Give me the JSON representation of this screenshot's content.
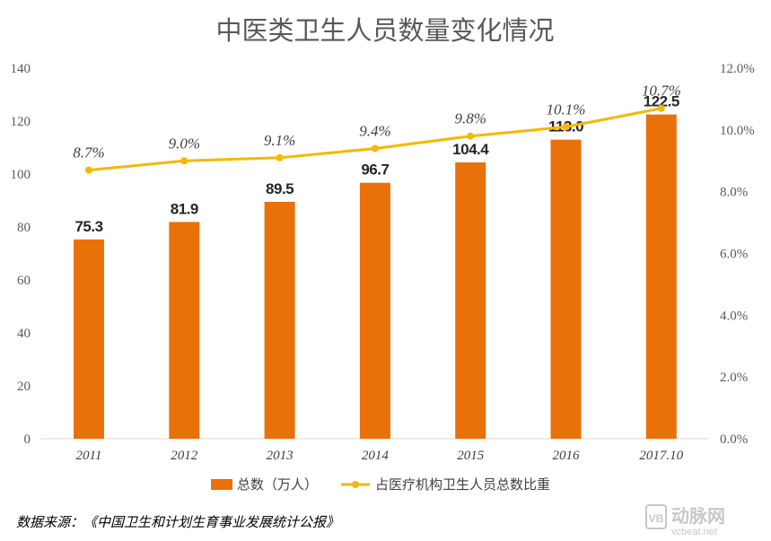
{
  "chart_data": {
    "type": "bar",
    "title": "中医类卫生人员数量变化情况",
    "categories": [
      "2011",
      "2012",
      "2013",
      "2014",
      "2015",
      "2016",
      "2017.10"
    ],
    "series": [
      {
        "name": "总数（万人）",
        "type": "bar",
        "axis": "left",
        "color": "#e8710a",
        "values": [
          75.3,
          81.9,
          89.5,
          96.7,
          104.4,
          113.0,
          122.5
        ],
        "labels": [
          "75.3",
          "81.9",
          "89.5",
          "96.7",
          "104.4",
          "113.0",
          "122.5"
        ]
      },
      {
        "name": "占医疗机构卫生人员总数比重",
        "type": "line",
        "axis": "right",
        "color": "#f5b800",
        "values": [
          8.7,
          9.0,
          9.1,
          9.4,
          9.8,
          10.1,
          10.7
        ],
        "labels": [
          "8.7%",
          "9.0%",
          "9.1%",
          "9.4%",
          "9.8%",
          "10.1%",
          "10.7%"
        ]
      }
    ],
    "ylim": [
      0,
      140
    ],
    "yticks": [
      "0",
      "20",
      "40",
      "60",
      "80",
      "100",
      "120",
      "140"
    ],
    "y2lim": [
      0,
      12
    ],
    "y2ticks": [
      "0.0%",
      "2.0%",
      "4.0%",
      "6.0%",
      "8.0%",
      "10.0%",
      "12.0%"
    ],
    "grid": false,
    "legend": "bottom"
  },
  "source": "数据来源：《中国卫生和计划生育事业发展统计公报》",
  "watermark": {
    "logo_letter": "VB",
    "brand": "动脉网",
    "site": "vcbeat.net"
  }
}
